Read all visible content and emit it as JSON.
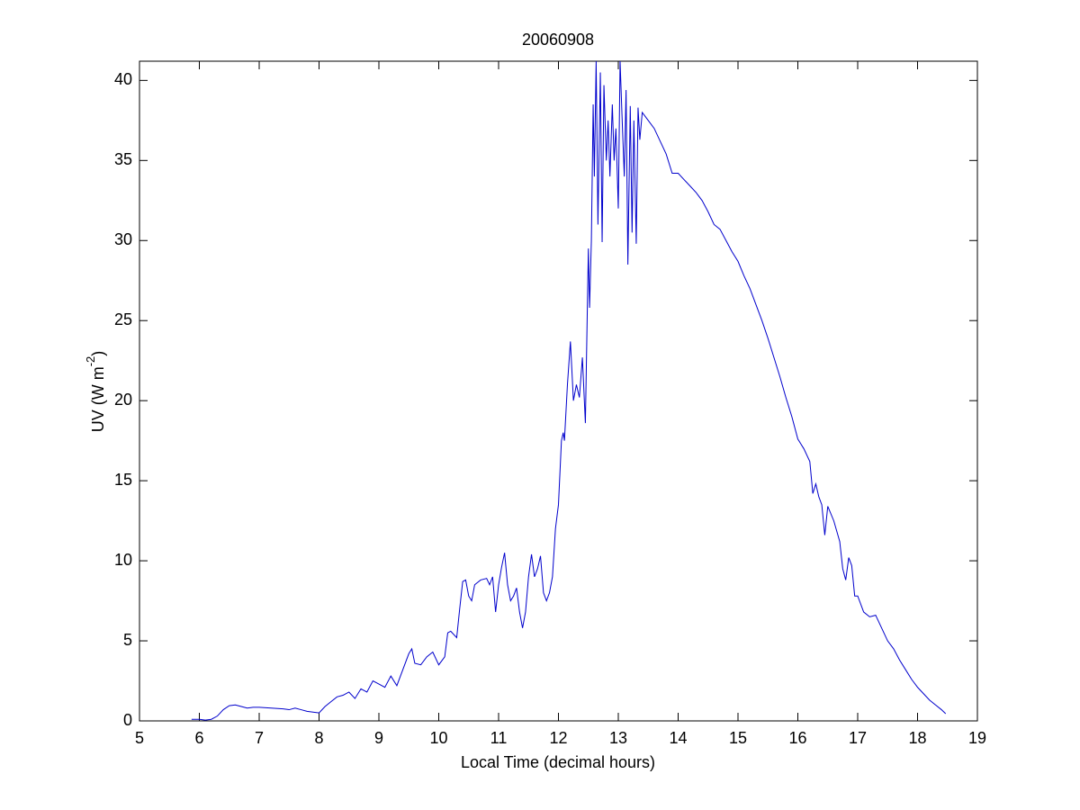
{
  "chart_data": {
    "type": "line",
    "title": "20060908",
    "xlabel": "Local Time (decimal hours)",
    "ylabel": [
      "UV (W m",
      "-2",
      ")"
    ],
    "xlim": [
      5,
      19
    ],
    "xticks": [
      5,
      6,
      7,
      8,
      9,
      10,
      11,
      12,
      13,
      14,
      15,
      16,
      17,
      18,
      19
    ],
    "ylim": [
      0,
      41.2
    ],
    "yticks": [
      0,
      5,
      10,
      15,
      20,
      25,
      30,
      35,
      40
    ],
    "grid": false,
    "series": [
      {
        "color": "#0000cc",
        "x": [
          5.87,
          6.0,
          6.1,
          6.2,
          6.3,
          6.4,
          6.5,
          6.6,
          6.7,
          6.8,
          6.9,
          7.0,
          7.2,
          7.4,
          7.5,
          7.6,
          7.7,
          7.8,
          7.9,
          8.0,
          8.1,
          8.2,
          8.3,
          8.4,
          8.5,
          8.6,
          8.7,
          8.8,
          8.9,
          9.0,
          9.1,
          9.2,
          9.3,
          9.4,
          9.5,
          9.55,
          9.6,
          9.7,
          9.8,
          9.9,
          10.0,
          10.1,
          10.15,
          10.2,
          10.3,
          10.35,
          10.4,
          10.45,
          10.5,
          10.55,
          10.6,
          10.7,
          10.8,
          10.85,
          10.9,
          10.95,
          11.0,
          11.05,
          11.1,
          11.15,
          11.2,
          11.25,
          11.3,
          11.35,
          11.4,
          11.45,
          11.5,
          11.55,
          11.6,
          11.65,
          11.7,
          11.75,
          11.8,
          11.85,
          11.9,
          11.95,
          12.0,
          12.05,
          12.08,
          12.1,
          12.15,
          12.2,
          12.25,
          12.3,
          12.35,
          12.4,
          12.45,
          12.5,
          12.52,
          12.55,
          12.58,
          12.6,
          12.63,
          12.66,
          12.7,
          12.73,
          12.76,
          12.8,
          12.83,
          12.86,
          12.9,
          12.93,
          12.96,
          13.0,
          13.03,
          13.06,
          13.1,
          13.13,
          13.16,
          13.2,
          13.23,
          13.26,
          13.3,
          13.33,
          13.36,
          13.4,
          13.5,
          13.6,
          13.7,
          13.8,
          13.9,
          14.0,
          14.1,
          14.2,
          14.3,
          14.4,
          14.5,
          14.6,
          14.7,
          14.8,
          14.9,
          15.0,
          15.1,
          15.2,
          15.3,
          15.4,
          15.5,
          15.6,
          15.7,
          15.8,
          15.9,
          16.0,
          16.1,
          16.2,
          16.25,
          16.3,
          16.35,
          16.4,
          16.45,
          16.5,
          16.6,
          16.7,
          16.75,
          16.8,
          16.85,
          16.9,
          16.95,
          17.0,
          17.1,
          17.2,
          17.3,
          17.4,
          17.5,
          17.6,
          17.7,
          17.8,
          17.9,
          18.0,
          18.1,
          18.2,
          18.3,
          18.4,
          18.47
        ],
        "values": [
          0.1,
          0.1,
          0.05,
          0.1,
          0.3,
          0.7,
          0.95,
          1.0,
          0.9,
          0.8,
          0.85,
          0.85,
          0.8,
          0.75,
          0.7,
          0.8,
          0.7,
          0.6,
          0.55,
          0.5,
          0.9,
          1.2,
          1.5,
          1.6,
          1.8,
          1.4,
          2.0,
          1.8,
          2.5,
          2.3,
          2.1,
          2.8,
          2.2,
          3.2,
          4.2,
          4.5,
          3.6,
          3.5,
          4.0,
          4.3,
          3.5,
          4.0,
          5.5,
          5.6,
          5.2,
          7.0,
          8.7,
          8.8,
          7.8,
          7.5,
          8.5,
          8.8,
          8.9,
          8.5,
          9.0,
          6.8,
          8.5,
          9.6,
          10.5,
          8.5,
          7.5,
          7.8,
          8.3,
          6.8,
          5.8,
          6.8,
          9.0,
          10.4,
          9.0,
          9.5,
          10.3,
          8.0,
          7.5,
          8.0,
          9.0,
          12.0,
          13.5,
          17.5,
          18.0,
          17.5,
          21.0,
          23.7,
          20.0,
          21.0,
          20.2,
          22.7,
          18.6,
          29.5,
          25.8,
          30,
          38.5,
          34,
          41.2,
          31,
          40.5,
          29.9,
          39.7,
          35,
          37.5,
          34,
          38.5,
          35,
          37,
          32,
          41.2,
          38,
          34,
          39.4,
          28.5,
          38.4,
          30.5,
          37.5,
          29.8,
          38.3,
          36.3,
          38.0,
          37.5,
          37.0,
          36.2,
          35.4,
          34.2,
          34.2,
          33.8,
          33.4,
          33.0,
          32.5,
          31.8,
          31.0,
          30.7,
          30.0,
          29.3,
          28.7,
          27.8,
          27.0,
          26.0,
          25.0,
          23.9,
          22.7,
          21.5,
          20.2,
          19.0,
          17.6,
          17.0,
          16.2,
          14.2,
          14.8,
          14.0,
          13.5,
          11.6,
          13.4,
          12.5,
          11.2,
          9.5,
          8.8,
          10.2,
          9.7,
          7.8,
          7.8,
          6.8,
          6.5,
          6.6,
          5.8,
          5.0,
          4.5,
          3.8,
          3.2,
          2.6,
          2.1,
          1.7,
          1.3,
          1.0,
          0.7,
          0.45
        ]
      }
    ]
  }
}
